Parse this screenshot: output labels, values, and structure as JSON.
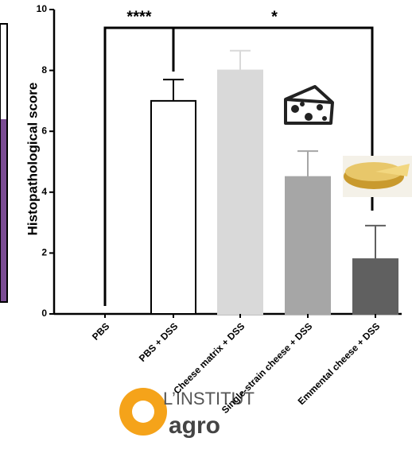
{
  "chart_data": {
    "type": "bar",
    "y_label": "Histopathological score",
    "categories": [
      "PBS",
      "PBS + DSS",
      "Cheese matrix + DSS",
      "Single-strain cheese + DSS",
      "Emmental cheese + DSS"
    ],
    "values": [
      0,
      7,
      8,
      4.5,
      1.8
    ],
    "errors": [
      0,
      0.7,
      0.65,
      0.85,
      1.1
    ],
    "colors": [
      "#ffffff",
      "#ffffff",
      "#d9d9d9",
      "#a6a6a6",
      "#606060"
    ],
    "ylim": [
      0,
      10
    ],
    "yticks": [
      0,
      2,
      4,
      6,
      8,
      10
    ],
    "annotations": [
      "****",
      "*"
    ]
  },
  "logo": {
    "line1": "L’INSTITUT",
    "line2": "agro"
  }
}
